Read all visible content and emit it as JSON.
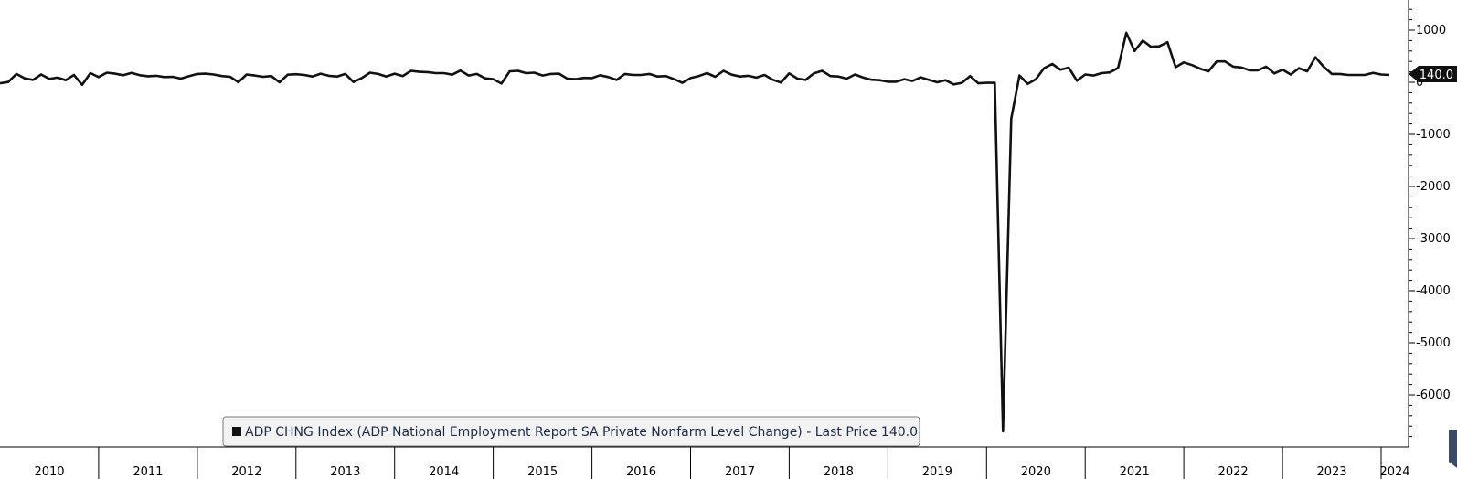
{
  "chart_data": {
    "type": "line",
    "title": "",
    "xlabel": "",
    "ylabel": "",
    "ylim": [
      -6800,
      1400
    ],
    "y_ticks": [
      1000,
      0,
      -1000,
      -2000,
      -3000,
      -4000,
      -5000,
      -6000
    ],
    "y_tick_labels": [
      "1000",
      "0",
      "-1000",
      "-2000",
      "-3000",
      "-4000",
      "-5000",
      "-6000"
    ],
    "x_start": "2010-01",
    "x_end": "2024-02",
    "x_year_labels": [
      "2010",
      "2011",
      "2012",
      "2013",
      "2014",
      "2015",
      "2016",
      "2017",
      "2018",
      "2019",
      "2020",
      "2021",
      "2022",
      "2023",
      "2024"
    ],
    "legend": {
      "text": "ADP CHNG Index (ADP National Employment Report SA Private Nonfarm Level Change) - Last Price 140.0",
      "placement": "bottom-left"
    },
    "last_value_label": "140.0",
    "series": [
      {
        "name": "ADP CHNG Index (ADP National Employment Report SA Private Nonfarm Level Change)",
        "color": "#111111",
        "values": [
          -20,
          5,
          160,
          75,
          45,
          150,
          65,
          90,
          40,
          140,
          -50,
          175,
          100,
          185,
          165,
          135,
          180,
          135,
          115,
          125,
          100,
          105,
          70,
          120,
          160,
          165,
          150,
          120,
          105,
          2,
          150,
          130,
          105,
          120,
          0,
          145,
          155,
          140,
          110,
          165,
          125,
          110,
          160,
          5,
          80,
          185,
          160,
          110,
          165,
          120,
          220,
          200,
          195,
          175,
          175,
          145,
          225,
          130,
          160,
          75,
          60,
          -25,
          210,
          220,
          175,
          185,
          130,
          160,
          165,
          70,
          60,
          85,
          80,
          135,
          100,
          45,
          160,
          140,
          140,
          160,
          110,
          120,
          60,
          -10,
          80,
          120,
          175,
          105,
          220,
          145,
          110,
          125,
          90,
          140,
          50,
          -5,
          170,
          70,
          45,
          170,
          220,
          120,
          110,
          70,
          150,
          90,
          50,
          40,
          10,
          10,
          60,
          25,
          95,
          45,
          0,
          40,
          -40,
          -10,
          120,
          -20,
          -10,
          -10,
          -6700,
          -700,
          130,
          -30,
          60,
          270,
          350,
          240,
          280,
          30,
          150,
          130,
          175,
          190,
          275,
          950,
          600,
          800,
          680,
          690,
          770,
          290,
          380,
          330,
          260,
          210,
          400,
          400,
          300,
          285,
          230,
          230,
          300,
          170,
          240,
          150,
          270,
          210,
          480,
          300,
          160,
          160,
          140,
          140,
          140,
          180,
          150,
          140
        ]
      }
    ],
    "grid": false
  }
}
